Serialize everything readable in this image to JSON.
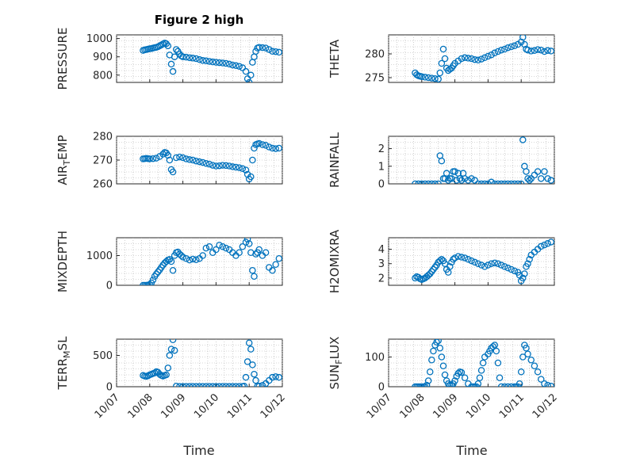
{
  "figure": {
    "title": "Figure 2 high",
    "xlabel": "Time",
    "marker_color": "#0072BD",
    "xticks": [
      "10/07",
      "10/08",
      "10/09",
      "10/10",
      "10/11",
      "10/12"
    ]
  },
  "chart_data": [
    {
      "type": "scatter",
      "ylabel": "PRESSURE",
      "ylim": [
        760,
        1020
      ],
      "yticks": [
        800,
        900,
        1000
      ],
      "xlim": [
        7.0,
        12.0
      ],
      "grid": true,
      "x": [
        7.8,
        7.85,
        7.9,
        7.95,
        8.0,
        8.05,
        8.1,
        8.15,
        8.2,
        8.25,
        8.3,
        8.35,
        8.4,
        8.45,
        8.5,
        8.55,
        8.6,
        8.65,
        8.7,
        8.75,
        8.8,
        8.85,
        8.9,
        8.95,
        9.0,
        9.1,
        9.2,
        9.3,
        9.4,
        9.5,
        9.6,
        9.7,
        9.8,
        9.9,
        10.0,
        10.1,
        10.2,
        10.3,
        10.4,
        10.5,
        10.6,
        10.7,
        10.8,
        10.9,
        10.95,
        11.0,
        11.05,
        11.1,
        11.15,
        11.2,
        11.25,
        11.3,
        11.4,
        11.5,
        11.6,
        11.7,
        11.8,
        11.9
      ],
      "y": [
        935,
        938,
        940,
        942,
        944,
        945,
        948,
        950,
        952,
        955,
        960,
        965,
        970,
        975,
        972,
        960,
        910,
        860,
        820,
        900,
        940,
        930,
        915,
        905,
        900,
        898,
        895,
        893,
        890,
        885,
        880,
        878,
        875,
        872,
        870,
        868,
        866,
        864,
        860,
        855,
        852,
        848,
        840,
        820,
        780,
        760,
        800,
        870,
        900,
        930,
        948,
        952,
        950,
        948,
        940,
        930,
        928,
        925
      ]
    },
    {
      "type": "scatter",
      "ylabel": "THETA",
      "ylim": [
        274,
        284
      ],
      "yticks": [
        275,
        280
      ],
      "xlim": [
        7.0,
        12.0
      ],
      "grid": true,
      "x": [
        7.8,
        7.85,
        7.9,
        7.95,
        8.0,
        8.1,
        8.2,
        8.3,
        8.4,
        8.5,
        8.55,
        8.6,
        8.65,
        8.7,
        8.75,
        8.8,
        8.85,
        8.9,
        8.95,
        9.0,
        9.1,
        9.2,
        9.3,
        9.4,
        9.5,
        9.6,
        9.7,
        9.8,
        9.9,
        10.0,
        10.1,
        10.2,
        10.3,
        10.4,
        10.5,
        10.6,
        10.7,
        10.8,
        10.9,
        11.0,
        11.05,
        11.1,
        11.15,
        11.2,
        11.3,
        11.4,
        11.5,
        11.6,
        11.7,
        11.8,
        11.9
      ],
      "y": [
        276,
        275.6,
        275.4,
        275.3,
        275.2,
        275.1,
        275.0,
        274.9,
        274.8,
        274.7,
        276,
        278,
        281,
        279,
        277,
        276.5,
        276.8,
        277,
        277.5,
        278,
        278.5,
        279,
        279.2,
        279.1,
        279.0,
        278.8,
        278.7,
        278.9,
        279.2,
        279.5,
        279.8,
        280.2,
        280.5,
        280.8,
        281,
        281.3,
        281.5,
        281.7,
        282,
        282.5,
        283.5,
        282,
        281,
        280.8,
        280.6,
        280.7,
        280.9,
        280.8,
        280.5,
        280.7,
        280.6
      ]
    },
    {
      "type": "scatter",
      "ylabel": "AIR_TEMP",
      "ylim": [
        260,
        280
      ],
      "yticks": [
        260,
        270,
        280
      ],
      "xlim": [
        7.0,
        12.0
      ],
      "grid": true,
      "x": [
        7.8,
        7.85,
        7.9,
        7.95,
        8.0,
        8.1,
        8.2,
        8.3,
        8.4,
        8.45,
        8.5,
        8.55,
        8.6,
        8.65,
        8.7,
        8.8,
        8.9,
        9.0,
        9.1,
        9.2,
        9.3,
        9.4,
        9.5,
        9.6,
        9.7,
        9.8,
        9.9,
        10.0,
        10.1,
        10.2,
        10.3,
        10.4,
        10.5,
        10.6,
        10.7,
        10.8,
        10.9,
        10.95,
        11.0,
        11.05,
        11.1,
        11.15,
        11.2,
        11.25,
        11.3,
        11.4,
        11.5,
        11.6,
        11.7,
        11.8,
        11.9
      ],
      "y": [
        270.5,
        270.6,
        270.7,
        270.6,
        270.5,
        270.6,
        270.8,
        271.5,
        272.5,
        273.2,
        273,
        272,
        270,
        266,
        265,
        271,
        271.3,
        271.0,
        270.5,
        270.2,
        270.0,
        269.6,
        269.3,
        269.0,
        268.6,
        268.3,
        267.8,
        267.5,
        267.6,
        267.8,
        267.7,
        267.5,
        267.2,
        267.0,
        266.8,
        266.4,
        265.8,
        264,
        262,
        263,
        270,
        275,
        276.5,
        276.8,
        277,
        276.5,
        276.2,
        275.5,
        275,
        274.8,
        275
      ]
    },
    {
      "type": "scatter",
      "ylabel": "RAINFALL",
      "ylim": [
        0,
        2.7
      ],
      "yticks": [
        0,
        1,
        2
      ],
      "xlim": [
        7.0,
        12.0
      ],
      "grid": true,
      "x": [
        7.8,
        7.9,
        8.0,
        8.1,
        8.2,
        8.3,
        8.4,
        8.5,
        8.55,
        8.6,
        8.65,
        8.7,
        8.75,
        8.8,
        8.85,
        8.9,
        8.95,
        9.0,
        9.05,
        9.1,
        9.15,
        9.2,
        9.25,
        9.3,
        9.4,
        9.5,
        9.6,
        9.7,
        9.8,
        9.9,
        10.0,
        10.1,
        10.2,
        10.3,
        10.4,
        10.5,
        10.6,
        10.7,
        10.8,
        10.9,
        11.0,
        11.05,
        11.1,
        11.15,
        11.2,
        11.25,
        11.3,
        11.4,
        11.5,
        11.6,
        11.7,
        11.8,
        11.9
      ],
      "y": [
        0,
        0,
        0,
        0,
        0,
        0,
        0,
        0,
        1.6,
        1.3,
        0.3,
        0.3,
        0.6,
        0.2,
        0.3,
        0.3,
        0.7,
        0.7,
        0.2,
        0.6,
        0.3,
        0.2,
        0.6,
        0.3,
        0.2,
        0.3,
        0.2,
        0,
        0,
        0,
        0,
        0.1,
        0,
        0,
        0,
        0,
        0,
        0,
        0,
        0,
        0,
        2.5,
        1.0,
        0.7,
        0.3,
        0.2,
        0.3,
        0.5,
        0.7,
        0.3,
        0.7,
        0.3,
        0.2
      ]
    },
    {
      "type": "scatter",
      "ylabel": "MIXDEPTH",
      "ylim": [
        0,
        1600
      ],
      "yticks": [
        0,
        1000
      ],
      "xlim": [
        7.0,
        12.0
      ],
      "grid": true,
      "x": [
        7.8,
        7.85,
        7.9,
        7.95,
        8.0,
        8.05,
        8.1,
        8.15,
        8.2,
        8.25,
        8.3,
        8.35,
        8.4,
        8.45,
        8.5,
        8.55,
        8.6,
        8.65,
        8.7,
        8.75,
        8.8,
        8.85,
        8.9,
        8.95,
        9.0,
        9.1,
        9.2,
        9.3,
        9.4,
        9.5,
        9.6,
        9.7,
        9.8,
        9.9,
        10.0,
        10.1,
        10.2,
        10.3,
        10.4,
        10.5,
        10.6,
        10.7,
        10.8,
        10.9,
        10.95,
        11.0,
        11.05,
        11.1,
        11.15,
        11.2,
        11.25,
        11.3,
        11.4,
        11.5,
        11.6,
        11.7,
        11.8,
        11.9
      ],
      "y": [
        0,
        0,
        0,
        10,
        20,
        80,
        180,
        300,
        380,
        450,
        520,
        600,
        680,
        750,
        800,
        850,
        870,
        800,
        500,
        1000,
        1100,
        1120,
        1050,
        1000,
        950,
        900,
        850,
        880,
        860,
        900,
        1000,
        1250,
        1300,
        1100,
        1200,
        1350,
        1300,
        1250,
        1200,
        1100,
        1000,
        1100,
        1300,
        1450,
        1550,
        1400,
        1100,
        500,
        300,
        1050,
        1100,
        1200,
        1000,
        1100,
        600,
        500,
        700,
        900
      ]
    },
    {
      "type": "scatter",
      "ylabel": "H2OMIXRA",
      "ylim": [
        1.5,
        4.8
      ],
      "yticks": [
        2,
        3,
        4
      ],
      "xlim": [
        7.0,
        12.0
      ],
      "grid": true,
      "x": [
        7.8,
        7.85,
        7.9,
        7.95,
        8.0,
        8.05,
        8.1,
        8.15,
        8.2,
        8.25,
        8.3,
        8.35,
        8.4,
        8.45,
        8.5,
        8.55,
        8.6,
        8.65,
        8.7,
        8.75,
        8.8,
        8.85,
        8.9,
        8.95,
        9.0,
        9.1,
        9.2,
        9.3,
        9.4,
        9.5,
        9.6,
        9.7,
        9.8,
        9.9,
        10.0,
        10.1,
        10.2,
        10.3,
        10.4,
        10.5,
        10.6,
        10.7,
        10.8,
        10.9,
        10.95,
        11.0,
        11.05,
        11.1,
        11.15,
        11.2,
        11.25,
        11.3,
        11.4,
        11.5,
        11.6,
        11.7,
        11.8,
        11.9
      ],
      "y": [
        2.0,
        2.1,
        2.05,
        1.95,
        1.9,
        1.95,
        2.0,
        2.1,
        2.2,
        2.3,
        2.45,
        2.6,
        2.75,
        2.9,
        3.1,
        3.2,
        3.3,
        3.2,
        3.0,
        2.6,
        2.4,
        2.8,
        3.1,
        3.3,
        3.4,
        3.5,
        3.45,
        3.4,
        3.3,
        3.2,
        3.1,
        3.0,
        2.9,
        2.8,
        2.9,
        3.0,
        3.05,
        3.0,
        2.9,
        2.8,
        2.7,
        2.6,
        2.5,
        2.4,
        2.2,
        1.8,
        2.0,
        2.3,
        2.8,
        3.0,
        3.3,
        3.6,
        3.8,
        4.0,
        4.2,
        4.3,
        4.4,
        4.5
      ]
    },
    {
      "type": "scatter",
      "ylabel": "TERR_MSL",
      "ylim": [
        0,
        760
      ],
      "yticks": [
        0,
        500
      ],
      "xlim": [
        7.0,
        12.0
      ],
      "grid": true,
      "x": [
        7.8,
        7.85,
        7.9,
        7.95,
        8.0,
        8.05,
        8.1,
        8.15,
        8.2,
        8.25,
        8.3,
        8.35,
        8.4,
        8.45,
        8.5,
        8.55,
        8.6,
        8.65,
        8.7,
        8.75,
        8.8,
        8.9,
        9.0,
        9.1,
        9.2,
        9.3,
        9.4,
        9.5,
        9.6,
        9.7,
        9.8,
        9.9,
        10.0,
        10.1,
        10.2,
        10.3,
        10.4,
        10.5,
        10.6,
        10.7,
        10.8,
        10.85,
        10.9,
        10.95,
        11.0,
        11.05,
        11.1,
        11.15,
        11.2,
        11.25,
        11.3,
        11.4,
        11.5,
        11.6,
        11.7,
        11.8,
        11.9
      ],
      "y": [
        180,
        170,
        165,
        175,
        190,
        200,
        210,
        220,
        240,
        230,
        200,
        180,
        170,
        180,
        190,
        300,
        500,
        600,
        750,
        580,
        10,
        5,
        5,
        5,
        5,
        5,
        5,
        5,
        5,
        5,
        5,
        5,
        5,
        5,
        5,
        5,
        5,
        5,
        5,
        5,
        5,
        10,
        150,
        400,
        700,
        600,
        350,
        200,
        100,
        10,
        10,
        20,
        50,
        100,
        150,
        160,
        150
      ]
    },
    {
      "type": "scatter",
      "ylabel": "SUN_FLUX",
      "ylim": [
        0,
        160
      ],
      "yticks": [
        0,
        100
      ],
      "xlim": [
        7.0,
        12.0
      ],
      "grid": true,
      "x": [
        7.8,
        7.85,
        7.9,
        7.95,
        8.0,
        8.05,
        8.1,
        8.15,
        8.2,
        8.25,
        8.3,
        8.35,
        8.4,
        8.45,
        8.5,
        8.55,
        8.6,
        8.65,
        8.7,
        8.75,
        8.8,
        8.85,
        8.9,
        8.95,
        9.0,
        9.05,
        9.1,
        9.15,
        9.2,
        9.3,
        9.4,
        9.5,
        9.55,
        9.6,
        9.65,
        9.7,
        9.75,
        9.8,
        9.85,
        9.9,
        10.0,
        10.05,
        10.1,
        10.15,
        10.2,
        10.25,
        10.3,
        10.35,
        10.4,
        10.5,
        10.6,
        10.7,
        10.8,
        10.85,
        10.9,
        10.95,
        11.0,
        11.05,
        11.1,
        11.15,
        11.2,
        11.3,
        11.4,
        11.5,
        11.6,
        11.7,
        11.8,
        11.9
      ],
      "y": [
        0,
        0,
        0,
        0,
        0,
        0,
        0,
        5,
        20,
        50,
        90,
        120,
        140,
        150,
        155,
        130,
        100,
        70,
        40,
        20,
        10,
        5,
        5,
        10,
        20,
        35,
        45,
        50,
        48,
        30,
        10,
        0,
        0,
        0,
        0,
        10,
        30,
        55,
        80,
        100,
        110,
        120,
        130,
        135,
        140,
        120,
        80,
        30,
        0,
        0,
        0,
        0,
        0,
        0,
        0,
        10,
        50,
        100,
        140,
        130,
        110,
        90,
        70,
        50,
        25,
        10,
        5,
        2
      ]
    }
  ]
}
